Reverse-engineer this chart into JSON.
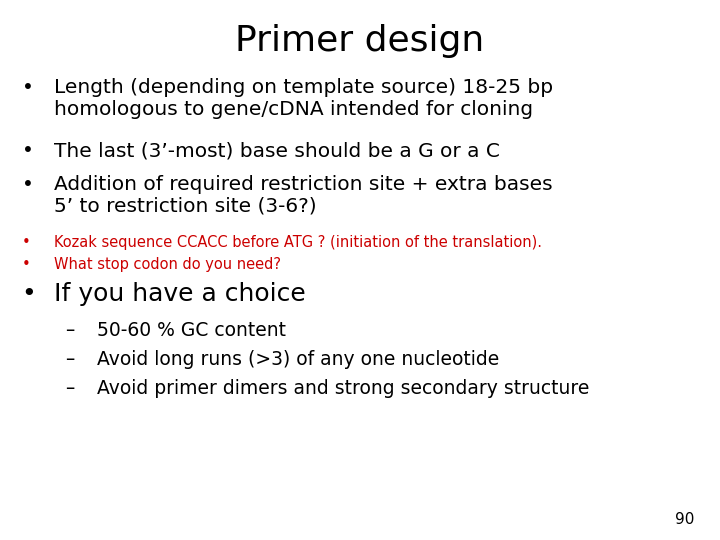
{
  "title": "Primer design",
  "background_color": "#ffffff",
  "title_color": "#000000",
  "title_fontsize": 26,
  "page_number": "90",
  "page_number_fontsize": 11,
  "bullets": [
    {
      "text": "Length (depending on template source) 18-25 bp\nhomologous to gene/cDNA intended for cloning",
      "color": "#000000",
      "fontsize": 14.5,
      "bullet_fontsize": 14.5,
      "indent": 0.03,
      "text_indent": 0.075,
      "bullet": "•",
      "extra_space_after": 0.008
    },
    {
      "text": "The last (3’-most) base should be a G or a C",
      "color": "#000000",
      "fontsize": 14.5,
      "bullet_fontsize": 14.5,
      "indent": 0.03,
      "text_indent": 0.075,
      "bullet": "•",
      "extra_space_after": 0.008
    },
    {
      "text": "Addition of required restriction site + extra bases\n5’ to restriction site (3-6?)",
      "color": "#000000",
      "fontsize": 14.5,
      "bullet_fontsize": 14.5,
      "indent": 0.03,
      "text_indent": 0.075,
      "bullet": "•",
      "extra_space_after": 0.004
    },
    {
      "text": "Kozak sequence CCACC before ATG ? (initiation of the translation).",
      "color": "#cc0000",
      "fontsize": 10.5,
      "bullet_fontsize": 10.5,
      "indent": 0.03,
      "text_indent": 0.075,
      "bullet": "•",
      "extra_space_after": 0.001
    },
    {
      "text": "What stop codon do you need?",
      "color": "#cc0000",
      "fontsize": 10.5,
      "bullet_fontsize": 10.5,
      "indent": 0.03,
      "text_indent": 0.075,
      "bullet": "•",
      "extra_space_after": 0.008
    },
    {
      "text": "If you have a choice",
      "color": "#000000",
      "fontsize": 18,
      "bullet_fontsize": 18,
      "indent": 0.03,
      "text_indent": 0.075,
      "bullet": "•",
      "extra_space_after": 0.004
    },
    {
      "text": "50-60 % GC content",
      "color": "#000000",
      "fontsize": 13.5,
      "bullet_fontsize": 13.5,
      "indent": 0.09,
      "text_indent": 0.135,
      "bullet": "–",
      "extra_space_after": 0.004
    },
    {
      "text": "Avoid long runs (>3) of any one nucleotide",
      "color": "#000000",
      "fontsize": 13.5,
      "bullet_fontsize": 13.5,
      "indent": 0.09,
      "text_indent": 0.135,
      "bullet": "–",
      "extra_space_after": 0.004
    },
    {
      "text": "Avoid primer dimers and strong secondary structure",
      "color": "#000000",
      "fontsize": 13.5,
      "bullet_fontsize": 13.5,
      "indent": 0.09,
      "text_indent": 0.135,
      "bullet": "–",
      "extra_space_after": 0.004
    }
  ]
}
